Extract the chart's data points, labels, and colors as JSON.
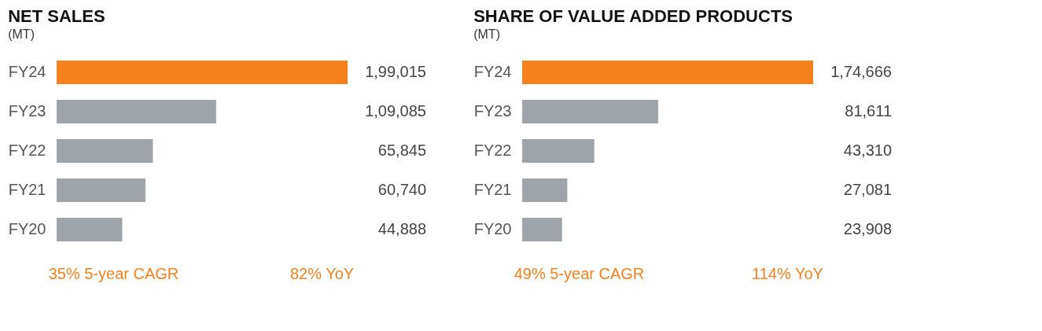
{
  "chart_data": [
    {
      "type": "bar",
      "orientation": "horizontal",
      "title": "NET SALES",
      "subtitle": "(MT)",
      "categories": [
        "FY24",
        "FY23",
        "FY22",
        "FY21",
        "FY20"
      ],
      "values": [
        199015,
        109085,
        65845,
        60740,
        44888
      ],
      "value_labels": [
        "1,99,015",
        "1,09,085",
        "65,845",
        "60,740",
        "44,888"
      ],
      "colors": [
        "#f5821f",
        "#9ea4aa",
        "#9ea4aa",
        "#9ea4aa",
        "#9ea4aa"
      ],
      "annotations": [
        "35% 5-year CAGR",
        "82% YoY"
      ],
      "grid": false
    },
    {
      "type": "bar",
      "orientation": "horizontal",
      "title": "SHARE OF VALUE ADDED PRODUCTS",
      "subtitle": "(MT)",
      "categories": [
        "FY24",
        "FY23",
        "FY22",
        "FY21",
        "FY20"
      ],
      "values": [
        174666,
        81611,
        43310,
        27081,
        23908
      ],
      "value_labels": [
        "1,74,666",
        "81,611",
        "43,310",
        "27,081",
        "23,908"
      ],
      "colors": [
        "#f5821f",
        "#9ea4aa",
        "#9ea4aa",
        "#9ea4aa",
        "#9ea4aa"
      ],
      "annotations": [
        "49% 5-year CAGR",
        "114% YoY"
      ],
      "grid": false
    }
  ]
}
